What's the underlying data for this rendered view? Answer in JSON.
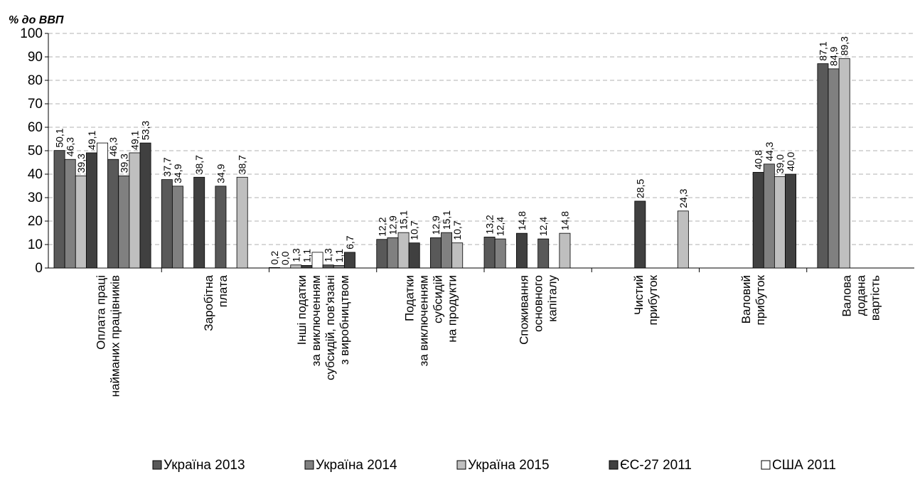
{
  "chart_data": {
    "type": "bar",
    "y_axis_title": "% до ВВП",
    "categories": [
      [
        "Оплата праці",
        "найманих працівників"
      ],
      [
        "Заробітна",
        "плата"
      ],
      [
        "Інші податки",
        "за виключенням",
        "субсидій, пов'язані",
        "з виробництвом"
      ],
      [
        "Податки",
        "за виключенням",
        "субсидій",
        "на продукти"
      ],
      [
        "Споживання",
        "основного",
        "капіталу"
      ],
      [
        "Чистий",
        "прибуток"
      ],
      [
        "Валовий",
        "прибуток"
      ],
      [
        "Валова",
        "додана",
        "вартість"
      ]
    ],
    "series": [
      {
        "name": "Україна 2013",
        "color": "#595959"
      },
      {
        "name": "Україна 2014",
        "color": "#808080"
      },
      {
        "name": "Україна 2015",
        "color": "#bfbfbf"
      },
      {
        "name": "ЄС-27 2011",
        "color": "#404040"
      },
      {
        "name": "США 2011",
        "color": "#ffffff"
      }
    ],
    "bars": [
      [
        {
          "value": 50.1,
          "label": "50,1",
          "color": "#595959"
        },
        {
          "value": 46.3,
          "label": "46,3",
          "color": "#808080"
        },
        {
          "value": 39.3,
          "label": "39,3",
          "color": "#bfbfbf"
        },
        {
          "value": 49.1,
          "label": "49,1",
          "color": "#404040"
        },
        {
          "value": 53.3,
          "color": "#ffffff"
        },
        {
          "value": 46.3,
          "label": "46,3",
          "color": "#595959"
        },
        {
          "value": 39.3,
          "label": "39,3",
          "color": "#808080"
        },
        {
          "value": 49.1,
          "label": "49,1",
          "color": "#bfbfbf"
        },
        {
          "value": 53.3,
          "label": "53,3",
          "color": "#404040"
        },
        null
      ],
      [
        {
          "value": 37.7,
          "label": "37,7",
          "color": "#595959"
        },
        {
          "value": 34.9,
          "label": "34,9",
          "color": "#808080"
        },
        null,
        {
          "value": 38.7,
          "label": "38,7",
          "color": "#404040"
        },
        null,
        {
          "value": 34.9,
          "label": "34,9",
          "color": "#595959"
        },
        null,
        {
          "value": 38.7,
          "label": "38,7",
          "color": "#bfbfbf"
        },
        null,
        null
      ],
      [
        {
          "value": 0.2,
          "label": "0,2",
          "color": "#595959"
        },
        {
          "value": 0.0,
          "label": "0,0",
          "color": "#808080"
        },
        {
          "value": 1.3,
          "label": "1,3",
          "color": "#bfbfbf"
        },
        {
          "value": 1.1,
          "label": "1,1",
          "color": "#404040"
        },
        {
          "value": 6.7,
          "color": "#ffffff"
        },
        {
          "value": 1.3,
          "label": "1,3",
          "color": "#595959"
        },
        {
          "value": 1.1,
          "label": "1,1",
          "color": "#808080"
        },
        {
          "value": 6.7,
          "label": "6,7",
          "color": "#404040"
        },
        null,
        null
      ],
      [
        {
          "value": 12.2,
          "label": "12,2",
          "color": "#595959"
        },
        {
          "value": 12.9,
          "label": "12,9",
          "color": "#808080"
        },
        {
          "value": 15.1,
          "label": "15,1",
          "color": "#bfbfbf"
        },
        {
          "value": 10.7,
          "label": "10,7",
          "color": "#404040"
        },
        null,
        {
          "value": 12.9,
          "label": "12,9",
          "color": "#595959"
        },
        {
          "value": 15.1,
          "label": "15,1",
          "color": "#808080"
        },
        {
          "value": 10.7,
          "label": "10,7",
          "color": "#bfbfbf"
        },
        null,
        null
      ],
      [
        {
          "value": 13.2,
          "label": "13,2",
          "color": "#595959"
        },
        {
          "value": 12.4,
          "label": "12,4",
          "color": "#808080"
        },
        {
          "value": 0,
          "color": "#bfbfbf"
        },
        {
          "value": 14.8,
          "label": "14,8",
          "color": "#404040"
        },
        null,
        {
          "value": 12.4,
          "label": "12,4",
          "color": "#595959"
        },
        null,
        {
          "value": 14.8,
          "label": "14,8",
          "color": "#bfbfbf"
        },
        null,
        null
      ],
      [
        null,
        null,
        null,
        null,
        {
          "value": 28.5,
          "label": "28,5",
          "color": "#404040"
        },
        null,
        null,
        null,
        {
          "value": 24.3,
          "label": "24,3",
          "color": "#bfbfbf"
        },
        null
      ],
      [
        null,
        null,
        null,
        null,
        null,
        {
          "value": 40.8,
          "label": "40,8",
          "color": "#404040"
        },
        {
          "value": 44.3,
          "label": "44,3",
          "color": "#808080"
        },
        {
          "value": 39.0,
          "label": "39,0",
          "color": "#bfbfbf"
        },
        {
          "value": 40.0,
          "label": "40,0",
          "color": "#404040"
        },
        null
      ],
      [
        null,
        {
          "value": 87.1,
          "label": "87,1",
          "color": "#595959"
        },
        {
          "value": 84.9,
          "label": "84,9",
          "color": "#808080"
        },
        {
          "value": 89.3,
          "label": "89,3",
          "color": "#bfbfbf"
        },
        null,
        null,
        null,
        null,
        null,
        null
      ]
    ],
    "ylim": [
      0,
      100
    ],
    "yticks": [
      0,
      10,
      20,
      30,
      40,
      50,
      60,
      70,
      80,
      90,
      100
    ],
    "grid": true,
    "grid_style": "dashed",
    "legend": "bottom"
  }
}
